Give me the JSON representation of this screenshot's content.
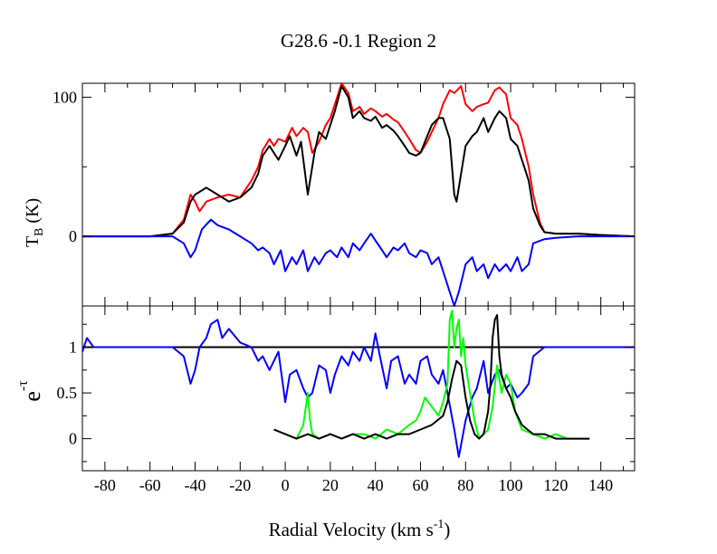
{
  "chart_data": {
    "title": "G28.6 -0.1   Region 2",
    "xlabel_main": "Radial Velocity (km s",
    "xlabel_sup": "-1",
    "xlabel_close": ")",
    "xlim": [
      -90,
      155
    ],
    "xticks": [
      -80,
      -60,
      -40,
      -20,
      0,
      20,
      40,
      60,
      80,
      100,
      120,
      140
    ],
    "panels": [
      {
        "id": "top",
        "type": "line",
        "ylabel_main": "T",
        "ylabel_sub": "B",
        "ylabel_unit": " (K)",
        "ylim": [
          -50,
          110
        ],
        "yticks": [
          0,
          100
        ],
        "series": [
          {
            "name": "red",
            "color": "#ff0000",
            "x": [
              -90,
              -60,
              -50,
              -45,
              -42,
              -40,
              -38,
              -35,
              -30,
              -25,
              -20,
              -15,
              -12,
              -10,
              -7,
              -5,
              -3,
              0,
              3,
              5,
              8,
              10,
              12,
              15,
              18,
              20,
              22,
              25,
              28,
              30,
              33,
              35,
              38,
              40,
              43,
              45,
              48,
              50,
              53,
              55,
              58,
              60,
              63,
              65,
              68,
              70,
              73,
              75,
              78,
              80,
              83,
              85,
              88,
              90,
              93,
              95,
              98,
              100,
              103,
              105,
              108,
              110,
              113,
              115,
              120,
              130,
              140,
              155
            ],
            "y": [
              0,
              0,
              2,
              12,
              30,
              25,
              18,
              25,
              28,
              30,
              28,
              40,
              50,
              62,
              70,
              65,
              70,
              68,
              78,
              72,
              78,
              75,
              60,
              68,
              80,
              85,
              95,
              110,
              103,
              90,
              93,
              88,
              92,
              90,
              86,
              88,
              84,
              82,
              75,
              70,
              62,
              60,
              68,
              75,
              85,
              95,
              105,
              103,
              108,
              95,
              90,
              93,
              95,
              96,
              105,
              107,
              102,
              85,
              80,
              70,
              50,
              30,
              10,
              3,
              2,
              2,
              1,
              0
            ]
          },
          {
            "name": "black",
            "color": "#000000",
            "x": [
              -90,
              -60,
              -50,
              -45,
              -42,
              -40,
              -35,
              -30,
              -25,
              -20,
              -15,
              -12,
              -10,
              -7,
              -5,
              -3,
              0,
              2,
              5,
              7,
              10,
              13,
              15,
              18,
              20,
              22,
              25,
              28,
              30,
              33,
              35,
              38,
              40,
              43,
              45,
              48,
              50,
              53,
              55,
              58,
              60,
              63,
              65,
              68,
              70,
              73,
              75,
              76,
              78,
              80,
              83,
              85,
              88,
              90,
              93,
              95,
              98,
              100,
              103,
              105,
              108,
              110,
              113,
              115,
              120,
              130,
              140,
              155
            ],
            "y": [
              0,
              0,
              2,
              10,
              25,
              30,
              35,
              30,
              25,
              28,
              35,
              45,
              58,
              65,
              60,
              55,
              65,
              72,
              58,
              68,
              30,
              60,
              75,
              70,
              80,
              90,
              108,
              100,
              85,
              90,
              85,
              83,
              86,
              78,
              80,
              76,
              72,
              65,
              60,
              58,
              60,
              72,
              80,
              85,
              85,
              70,
              30,
              25,
              45,
              65,
              72,
              75,
              85,
              75,
              85,
              90,
              85,
              70,
              65,
              55,
              40,
              20,
              8,
              3,
              2,
              2,
              1,
              0
            ]
          },
          {
            "name": "blue",
            "color": "#0000ff",
            "x": [
              -90,
              -60,
              -50,
              -45,
              -42,
              -40,
              -37,
              -33,
              -30,
              -25,
              -20,
              -15,
              -12,
              -10,
              -7,
              -5,
              -2,
              0,
              3,
              5,
              8,
              10,
              13,
              15,
              18,
              20,
              23,
              25,
              28,
              30,
              33,
              35,
              38,
              40,
              43,
              45,
              48,
              50,
              53,
              55,
              58,
              60,
              63,
              65,
              68,
              70,
              73,
              75,
              77,
              80,
              83,
              85,
              88,
              90,
              93,
              95,
              98,
              100,
              103,
              105,
              108,
              110,
              115,
              120,
              130,
              140,
              155
            ],
            "y": [
              0,
              0,
              0,
              -5,
              -15,
              -10,
              5,
              12,
              8,
              5,
              0,
              -5,
              -10,
              -8,
              -12,
              -20,
              -10,
              -25,
              -15,
              -20,
              -10,
              -25,
              -15,
              -20,
              -12,
              -10,
              -15,
              -8,
              -15,
              -5,
              -10,
              -5,
              2,
              -3,
              -10,
              -15,
              -8,
              -10,
              -5,
              -12,
              -15,
              -10,
              -12,
              -20,
              -15,
              -25,
              -40,
              -50,
              -40,
              -20,
              -15,
              -25,
              -20,
              -30,
              -20,
              -25,
              -20,
              -25,
              -15,
              -25,
              -20,
              -5,
              -2,
              -1,
              0,
              0,
              0
            ]
          }
        ]
      },
      {
        "id": "bottom",
        "type": "line",
        "ylabel_main": "e",
        "ylabel_sup": "-τ",
        "ylim": [
          -0.35,
          1.45
        ],
        "yticks": [
          0,
          0.5,
          1
        ],
        "ytick_labels": [
          "0",
          "0.5",
          "1"
        ],
        "reference_line": 1.0,
        "series": [
          {
            "name": "blue",
            "color": "#0000ff",
            "x": [
              -90,
              -88,
              -85,
              -80,
              -70,
              -60,
              -50,
              -45,
              -42,
              -40,
              -38,
              -35,
              -33,
              -30,
              -28,
              -25,
              -20,
              -15,
              -12,
              -10,
              -7,
              -5,
              -3,
              0,
              2,
              5,
              8,
              10,
              12,
              15,
              18,
              20,
              22,
              25,
              28,
              30,
              33,
              35,
              38,
              40,
              42,
              45,
              47,
              50,
              53,
              55,
              58,
              60,
              63,
              65,
              68,
              70,
              72,
              75,
              77,
              80,
              83,
              85,
              88,
              90,
              93,
              95,
              98,
              100,
              103,
              105,
              108,
              110,
              115,
              120,
              130,
              140,
              155
            ],
            "y": [
              0.95,
              1.1,
              1.0,
              1.0,
              1.0,
              1.0,
              1.0,
              0.9,
              0.6,
              0.75,
              1.0,
              1.1,
              1.25,
              1.3,
              1.1,
              1.2,
              1.05,
              1.0,
              0.85,
              0.9,
              0.75,
              0.85,
              0.95,
              0.4,
              0.7,
              0.75,
              0.55,
              0.45,
              0.5,
              0.8,
              0.75,
              0.5,
              0.7,
              0.9,
              0.8,
              0.95,
              0.85,
              1.0,
              0.85,
              1.15,
              0.9,
              0.55,
              0.85,
              0.9,
              0.6,
              0.7,
              0.6,
              0.85,
              0.9,
              0.7,
              0.6,
              0.75,
              0.5,
              0.1,
              -0.2,
              0.2,
              0.45,
              0.55,
              0.85,
              0.5,
              0.7,
              0.75,
              0.55,
              0.6,
              0.45,
              0.5,
              0.6,
              0.9,
              1.0,
              1.0,
              1.0,
              1.0,
              1.0
            ]
          },
          {
            "name": "green",
            "color": "#00ff00",
            "x": [
              -5,
              0,
              5,
              8,
              10,
              11,
              12,
              15,
              20,
              25,
              30,
              35,
              40,
              45,
              50,
              55,
              58,
              60,
              62,
              65,
              68,
              70,
              72,
              73,
              74,
              75,
              76,
              77,
              78,
              79,
              80,
              82,
              84,
              86,
              88,
              90,
              92,
              94,
              96,
              98,
              100,
              102,
              105,
              110,
              115,
              120,
              125,
              130,
              135
            ],
            "y": [
              0.1,
              0.05,
              0.0,
              0.15,
              0.5,
              0.2,
              0.05,
              0.0,
              0.05,
              0.0,
              0.05,
              0.05,
              0.0,
              0.1,
              0.05,
              0.15,
              0.2,
              0.3,
              0.45,
              0.35,
              0.25,
              0.4,
              0.6,
              1.3,
              1.4,
              1.0,
              1.2,
              1.3,
              0.9,
              1.1,
              0.8,
              0.5,
              0.2,
              0.0,
              0.05,
              0.1,
              0.35,
              0.8,
              0.5,
              0.7,
              0.6,
              0.3,
              0.1,
              0.05,
              0.0,
              0.05,
              0.0,
              0.0,
              0.0
            ]
          },
          {
            "name": "black",
            "color": "#000000",
            "x": [
              -5,
              0,
              5,
              10,
              15,
              20,
              25,
              30,
              35,
              40,
              45,
              50,
              55,
              60,
              65,
              70,
              72,
              74,
              76,
              78,
              80,
              82,
              84,
              86,
              88,
              90,
              91,
              92,
              93,
              94,
              95,
              96,
              98,
              100,
              102,
              105,
              110,
              115,
              120,
              125,
              130,
              135
            ],
            "y": [
              0.1,
              0.05,
              0.0,
              0.05,
              0.0,
              0.05,
              0.0,
              0.05,
              0.0,
              0.05,
              0.0,
              0.05,
              0.05,
              0.1,
              0.15,
              0.25,
              0.4,
              0.65,
              0.85,
              0.8,
              0.45,
              0.2,
              0.05,
              0.0,
              0.05,
              0.3,
              0.6,
              1.1,
              1.3,
              1.35,
              0.9,
              0.7,
              0.55,
              0.45,
              0.3,
              0.15,
              0.05,
              0.05,
              0.0,
              0.0,
              0.0,
              0.0
            ]
          }
        ]
      }
    ]
  }
}
